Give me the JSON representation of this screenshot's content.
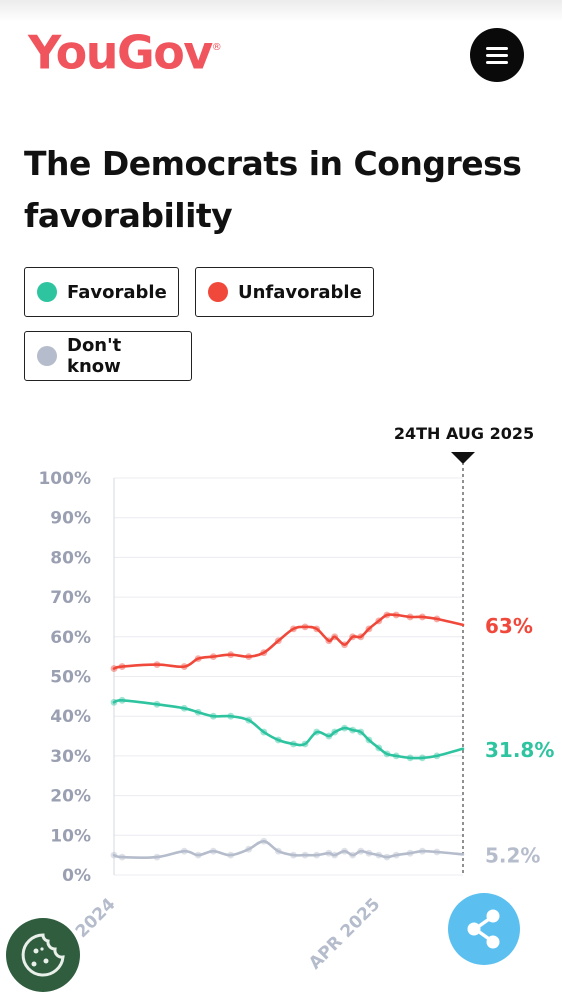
{
  "brand": {
    "logo_text": "YouGov",
    "logo_mark": "®",
    "logo_color": "#f0555e"
  },
  "header": {
    "menu_icon": "hamburger-menu-icon"
  },
  "page": {
    "title": "The Democrats in Congress favorability"
  },
  "legend": [
    {
      "label": "Favorable",
      "color": "#2ec4a0"
    },
    {
      "label": "Unfavorable",
      "color": "#f0483a"
    },
    {
      "label": "Don't know",
      "color": "#b5bccb"
    }
  ],
  "chart_data": {
    "type": "line",
    "title": "The Democrats in Congress favorability",
    "x_tick_labels": [
      "2024",
      "APR 2025"
    ],
    "y_tick_labels": [
      "100%",
      "90%",
      "80%",
      "70%",
      "60%",
      "50%",
      "40%",
      "30%",
      "20%",
      "10%",
      "0%"
    ],
    "ylim": [
      0,
      100
    ],
    "current_marker": "24TH AUG 2025",
    "legend_position": "top",
    "grid": true,
    "x": [
      "2024-01-01",
      "2024-01-15",
      "2024-03-15",
      "2024-05-01",
      "2024-05-25",
      "2024-06-20",
      "2024-07-20",
      "2024-08-20",
      "2024-09-15",
      "2024-10-10",
      "2024-11-05",
      "2024-11-25",
      "2024-12-15",
      "2025-01-05",
      "2025-01-15",
      "2025-02-01",
      "2025-02-15",
      "2025-03-01",
      "2025-03-15",
      "2025-04-01",
      "2025-04-15",
      "2025-05-01",
      "2025-05-25",
      "2025-06-15",
      "2025-07-10",
      "2025-08-24"
    ],
    "series": [
      {
        "name": "Favorable",
        "color": "#2ec4a0",
        "end_label": "31.8%",
        "values": [
          43.5,
          44,
          43,
          42,
          41,
          40,
          40,
          39,
          36,
          34,
          33,
          33,
          36,
          35,
          36,
          37,
          36.5,
          36,
          34,
          32,
          30.5,
          30,
          29.5,
          29.5,
          30,
          31.8
        ]
      },
      {
        "name": "Unfavorable",
        "color": "#f0483a",
        "end_label": "63%",
        "values": [
          52,
          52.5,
          53,
          52.5,
          54.5,
          55,
          55.5,
          55,
          56,
          59,
          62,
          62.5,
          62,
          59,
          60,
          58,
          60,
          60,
          62,
          64,
          65.5,
          65.5,
          65,
          65,
          64.5,
          63
        ]
      },
      {
        "name": "Don't know",
        "color": "#b5bccb",
        "end_label": "5.2%",
        "values": [
          5,
          4.5,
          4.5,
          6,
          5,
          6,
          5,
          6.5,
          8.5,
          6,
          5,
          5,
          5,
          5.5,
          5,
          6,
          5,
          6,
          5.5,
          5,
          4.5,
          5,
          5.5,
          6,
          5.8,
          5.2
        ]
      }
    ]
  },
  "fab": {
    "share_icon": "share-icon",
    "cookie_icon": "cookie-icon"
  }
}
